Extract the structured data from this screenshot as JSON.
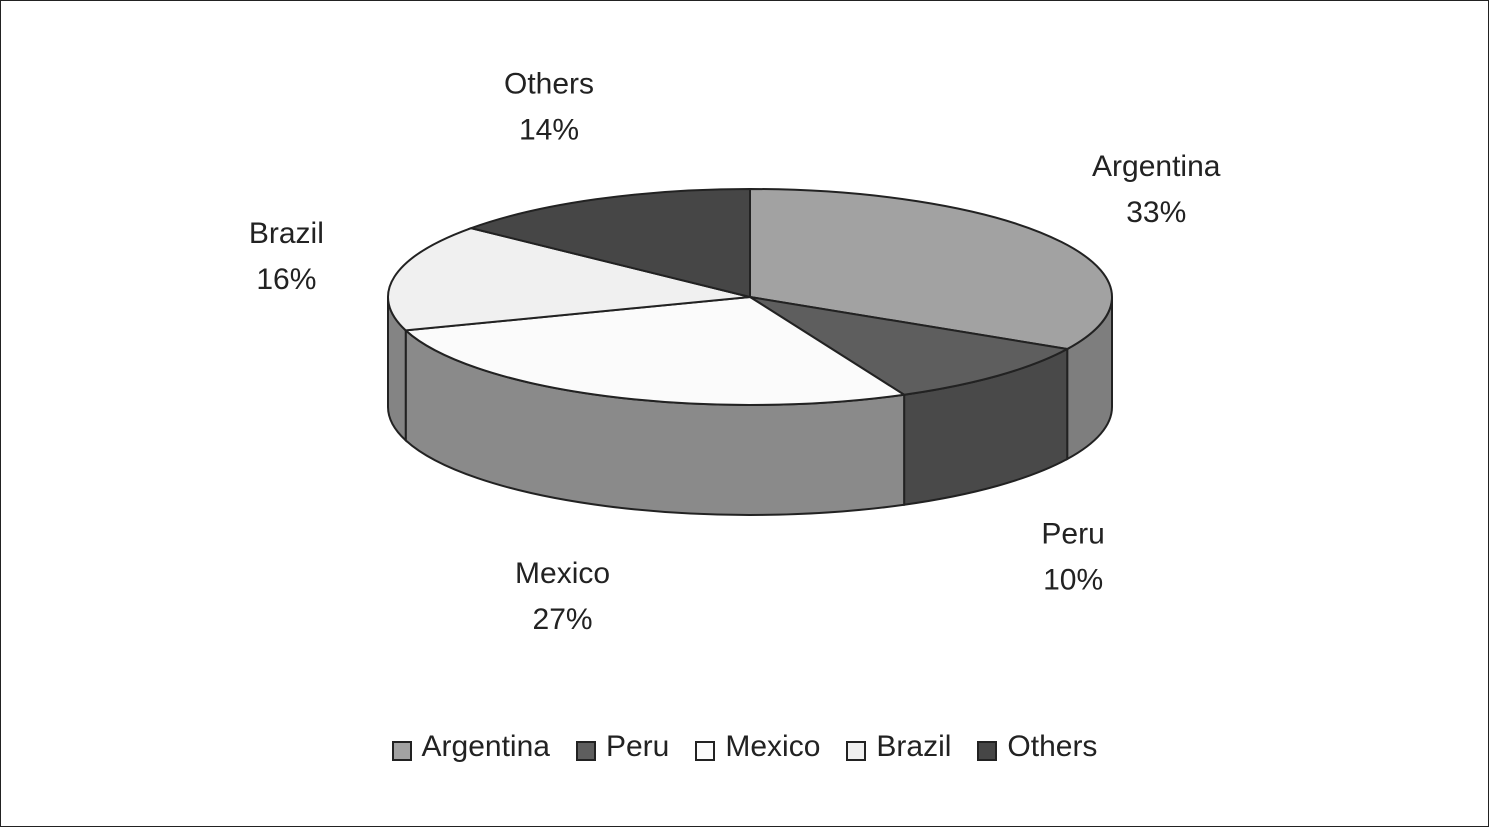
{
  "chart_data": {
    "type": "pie3d",
    "categories": [
      "Argentina",
      "Peru",
      "Mexico",
      "Brazil",
      "Others"
    ],
    "values": [
      33,
      10,
      27,
      16,
      14
    ],
    "value_labels": [
      "33%",
      "10%",
      "27%",
      "16%",
      "14%"
    ],
    "colors": [
      "#a2a2a2",
      "#5e5e5e",
      "#fbfbfb",
      "#f0f0f0",
      "#464646"
    ],
    "legend": "bottom"
  }
}
